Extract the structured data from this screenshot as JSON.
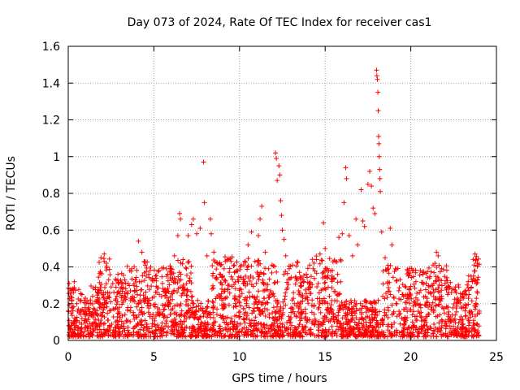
{
  "chart_data": {
    "type": "scatter",
    "title": "Day 073 of 2024, Rate Of TEC Index for receiver cas1",
    "xlabel": "GPS time / hours",
    "ylabel": "ROTI / TECUs",
    "xlim": [
      0,
      25
    ],
    "ylim": [
      0,
      1.6
    ],
    "xticks": [
      0,
      5,
      10,
      15,
      20,
      25
    ],
    "yticks": [
      0,
      0.2,
      0.4,
      0.6,
      0.8,
      1,
      1.2,
      1.4,
      1.6
    ],
    "xtick_labels": [
      "0",
      "5",
      "10",
      "15",
      "20",
      "25"
    ],
    "ytick_labels": [
      "0",
      "0.2",
      "0.4",
      "0.6",
      "0.8",
      "1",
      "1.2",
      "1.4",
      "1.6"
    ],
    "grid": true,
    "marker": "plus",
    "color": "#ff0000",
    "series": [
      {
        "values_note": "",
        "points": [
          [
            0.05,
            0.31
          ],
          [
            0.1,
            0.28
          ],
          [
            0.2,
            0.22
          ],
          [
            0.3,
            0.26
          ],
          [
            0.5,
            0.2
          ],
          [
            0.8,
            0.25
          ],
          [
            1.0,
            0.23
          ],
          [
            1.3,
            0.22
          ],
          [
            1.6,
            0.29
          ],
          [
            1.8,
            0.27
          ],
          [
            2.1,
            0.47
          ],
          [
            2.1,
            0.43
          ],
          [
            2.3,
            0.26
          ],
          [
            2.6,
            0.31
          ],
          [
            2.9,
            0.36
          ],
          [
            3.1,
            0.29
          ],
          [
            3.3,
            0.33
          ],
          [
            3.5,
            0.31
          ],
          [
            3.7,
            0.39
          ],
          [
            3.9,
            0.27
          ],
          [
            4.1,
            0.54
          ],
          [
            4.3,
            0.48
          ],
          [
            4.5,
            0.41
          ],
          [
            4.7,
            0.36
          ],
          [
            4.9,
            0.33
          ],
          [
            5.1,
            0.35
          ],
          [
            5.3,
            0.38
          ],
          [
            5.5,
            0.31
          ],
          [
            5.8,
            0.36
          ],
          [
            6.0,
            0.39
          ],
          [
            6.2,
            0.46
          ],
          [
            6.4,
            0.57
          ],
          [
            6.5,
            0.69
          ],
          [
            6.55,
            0.66
          ],
          [
            6.7,
            0.44
          ],
          [
            6.9,
            0.39
          ],
          [
            7.0,
            0.57
          ],
          [
            7.2,
            0.63
          ],
          [
            7.3,
            0.66
          ],
          [
            7.5,
            0.58
          ],
          [
            7.7,
            0.61
          ],
          [
            7.9,
            0.97
          ],
          [
            7.95,
            0.75
          ],
          [
            8.1,
            0.46
          ],
          [
            8.3,
            0.66
          ],
          [
            8.35,
            0.58
          ],
          [
            8.5,
            0.48
          ],
          [
            8.7,
            0.42
          ],
          [
            8.9,
            0.41
          ],
          [
            9.1,
            0.39
          ],
          [
            9.3,
            0.44
          ],
          [
            9.5,
            0.43
          ],
          [
            9.7,
            0.37
          ],
          [
            9.9,
            0.33
          ],
          [
            10.1,
            0.41
          ],
          [
            10.3,
            0.43
          ],
          [
            10.5,
            0.52
          ],
          [
            10.7,
            0.59
          ],
          [
            10.9,
            0.43
          ],
          [
            11.1,
            0.57
          ],
          [
            11.2,
            0.66
          ],
          [
            11.3,
            0.73
          ],
          [
            11.5,
            0.48
          ],
          [
            11.7,
            0.39
          ],
          [
            11.9,
            0.41
          ],
          [
            12.1,
            1.02
          ],
          [
            12.15,
            0.99
          ],
          [
            12.2,
            0.87
          ],
          [
            12.3,
            0.95
          ],
          [
            12.35,
            0.9
          ],
          [
            12.4,
            0.76
          ],
          [
            12.45,
            0.68
          ],
          [
            12.5,
            0.6
          ],
          [
            12.6,
            0.55
          ],
          [
            12.7,
            0.46
          ],
          [
            12.9,
            0.39
          ],
          [
            13.1,
            0.41
          ],
          [
            13.3,
            0.34
          ],
          [
            13.5,
            0.37
          ],
          [
            13.7,
            0.33
          ],
          [
            13.9,
            0.36
          ],
          [
            14.1,
            0.41
          ],
          [
            14.3,
            0.39
          ],
          [
            14.5,
            0.44
          ],
          [
            14.7,
            0.47
          ],
          [
            14.9,
            0.64
          ],
          [
            15.0,
            0.5
          ],
          [
            15.2,
            0.38
          ],
          [
            15.4,
            0.35
          ],
          [
            15.6,
            0.43
          ],
          [
            15.8,
            0.56
          ],
          [
            16.0,
            0.58
          ],
          [
            16.1,
            0.75
          ],
          [
            16.2,
            0.94
          ],
          [
            16.25,
            0.88
          ],
          [
            16.4,
            0.57
          ],
          [
            16.6,
            0.46
          ],
          [
            16.8,
            0.66
          ],
          [
            16.9,
            0.52
          ],
          [
            17.1,
            0.82
          ],
          [
            17.2,
            0.65
          ],
          [
            17.3,
            0.62
          ],
          [
            17.5,
            0.85
          ],
          [
            17.6,
            0.92
          ],
          [
            17.7,
            0.84
          ],
          [
            17.8,
            0.72
          ],
          [
            17.9,
            0.69
          ],
          [
            18.0,
            1.47
          ],
          [
            18.02,
            1.44
          ],
          [
            18.05,
            1.42
          ],
          [
            18.08,
            1.35
          ],
          [
            18.1,
            1.25
          ],
          [
            18.12,
            1.11
          ],
          [
            18.14,
            1.07
          ],
          [
            18.16,
            1.0
          ],
          [
            18.18,
            0.93
          ],
          [
            18.2,
            0.88
          ],
          [
            18.22,
            0.81
          ],
          [
            18.3,
            0.59
          ],
          [
            18.5,
            0.45
          ],
          [
            18.7,
            0.39
          ],
          [
            18.8,
            0.61
          ],
          [
            18.9,
            0.52
          ],
          [
            19.1,
            0.39
          ],
          [
            19.3,
            0.27
          ],
          [
            19.5,
            0.25
          ],
          [
            19.7,
            0.29
          ],
          [
            19.9,
            0.28
          ],
          [
            20.1,
            0.38
          ],
          [
            20.3,
            0.32
          ],
          [
            20.5,
            0.26
          ],
          [
            20.7,
            0.36
          ],
          [
            20.9,
            0.31
          ],
          [
            21.1,
            0.34
          ],
          [
            21.3,
            0.41
          ],
          [
            21.5,
            0.48
          ],
          [
            21.6,
            0.46
          ],
          [
            21.8,
            0.39
          ],
          [
            22.0,
            0.31
          ],
          [
            22.2,
            0.26
          ],
          [
            22.4,
            0.28
          ],
          [
            22.6,
            0.27
          ],
          [
            22.8,
            0.29
          ],
          [
            23.0,
            0.24
          ],
          [
            23.2,
            0.27
          ],
          [
            23.4,
            0.25
          ],
          [
            23.6,
            0.32
          ],
          [
            23.7,
            0.41
          ],
          [
            23.75,
            0.47
          ],
          [
            23.8,
            0.44
          ],
          [
            23.9,
            0.33
          ]
        ]
      }
    ]
  }
}
